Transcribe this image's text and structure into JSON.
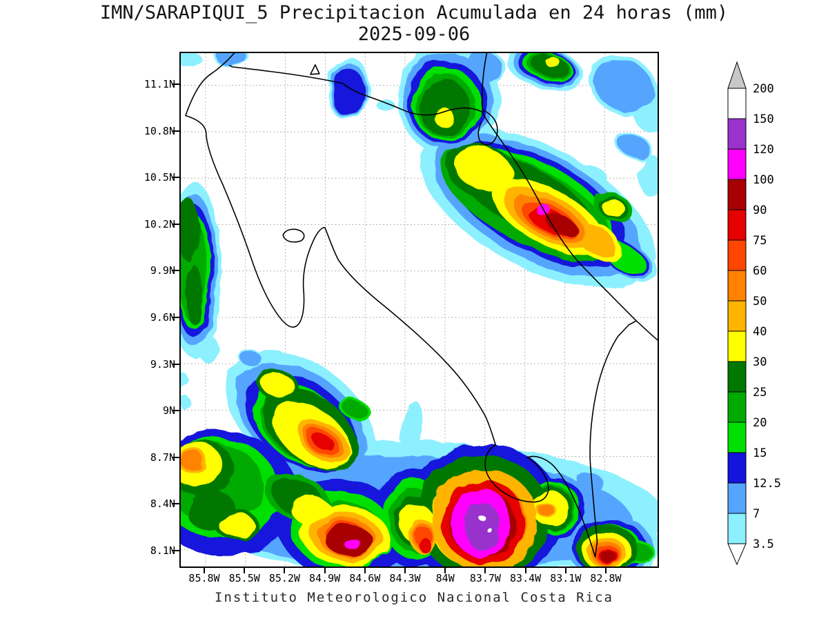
{
  "title": {
    "line1": "IMN/SARAPIQUI_5 Precipitacion Acumulada en 24 horas (mm)",
    "line2": "2025-09-06"
  },
  "footer": "Instituto Meteorologico Nacional Costa Rica",
  "axes": {
    "lat_labels": [
      "11.1N",
      "10.8N",
      "10.5N",
      "10.2N",
      "9.9N",
      "9.6N",
      "9.3N",
      "9N",
      "8.7N",
      "8.4N",
      "8.1N"
    ],
    "lon_labels": [
      "85.8W",
      "85.5W",
      "85.2W",
      "84.9W",
      "84.6W",
      "84.3W",
      "84W",
      "83.7W",
      "83.4W",
      "83.1W",
      "82.8W"
    ]
  },
  "colorbar": {
    "labels_top_to_bottom": [
      "200",
      "150",
      "120",
      "100",
      "90",
      "75",
      "60",
      "50",
      "40",
      "30",
      "25",
      "20",
      "15",
      "12.5",
      "7",
      "3.5"
    ],
    "segment_colors_top_to_bottom": [
      "#ffffff",
      "#9933cc",
      "#ff00ff",
      "#a80000",
      "#e60000",
      "#ff4600",
      "#ff8200",
      "#ffb400",
      "#ffff00",
      "#007800",
      "#00aa00",
      "#00e000",
      "#1414dc",
      "#55a5ff",
      "#8cf0ff"
    ],
    "top_arrow_color": "#c8c8c8",
    "bottom_arrow_color": "#ffffff"
  },
  "chart_data": {
    "type": "heatmap",
    "title": "IMN/SARAPIQUI_5 Precipitacion Acumulada en 24 horas (mm)",
    "subtitle": "2025-09-06",
    "source_caption": "Instituto Meteorologico Nacional Costa Rica",
    "region": "Costa Rica",
    "units": "mm",
    "x_tick_labels": [
      "85.8W",
      "85.5W",
      "85.2W",
      "84.9W",
      "84.6W",
      "84.3W",
      "84W",
      "83.7W",
      "83.4W",
      "83.1W",
      "82.8W"
    ],
    "y_tick_labels": [
      "11.1N",
      "10.8N",
      "10.5N",
      "10.2N",
      "9.9N",
      "9.6N",
      "9.3N",
      "9N",
      "8.7N",
      "8.4N",
      "8.1N"
    ],
    "contour_levels_mm": [
      3.5,
      7,
      12.5,
      15,
      20,
      25,
      30,
      40,
      50,
      60,
      75,
      90,
      100,
      120,
      150,
      200
    ],
    "legend_position": "right",
    "grid": "dotted",
    "notable_max_cells": [
      {
        "approx_lon": "83.7W",
        "approx_lat": "8.3N",
        "peak_mm": "150-200"
      },
      {
        "approx_lon": "84.7W",
        "approx_lat": "8.2N",
        "peak_mm": "100-120"
      },
      {
        "approx_lon": "83.3W",
        "approx_lat": "10.3N",
        "peak_mm": "100-120"
      },
      {
        "approx_lon": "82.8W",
        "approx_lat": "8.1N",
        "peak_mm": "90-100"
      },
      {
        "approx_lon": "84.9W",
        "approx_lat": "8.8N",
        "peak_mm": "75-90"
      },
      {
        "approx_lon": "84.0W",
        "approx_lat": "10.9N",
        "peak_mm": "30-40"
      },
      {
        "approx_lon": "85.7W",
        "approx_lat": "9.6N-10.4N",
        "peak_mm": "25-30"
      }
    ]
  }
}
